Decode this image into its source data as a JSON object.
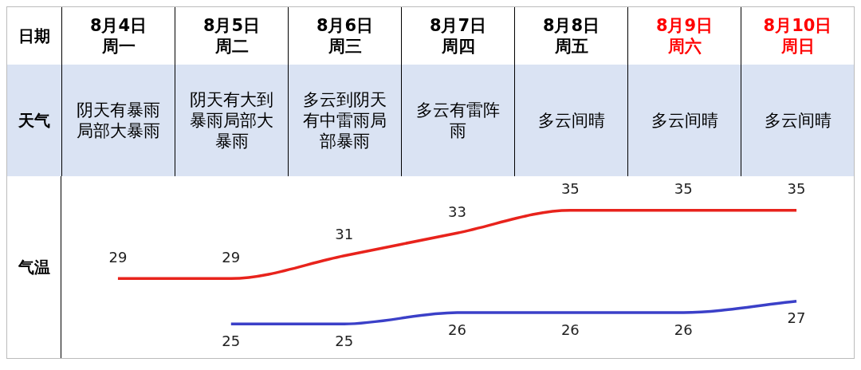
{
  "chart_data": {
    "type": "line",
    "categories": [
      "8月4日周一",
      "8月5日周二",
      "8月6日周三",
      "8月7日周四",
      "8月8日周五",
      "8月9日周六",
      "8月10日周日"
    ],
    "series": [
      {
        "color": "#e8231c",
        "values": [
          29,
          29,
          31,
          33,
          35,
          35,
          35
        ]
      },
      {
        "color": "#3b40c8",
        "values": [
          null,
          25,
          25,
          26,
          26,
          26,
          27
        ]
      }
    ],
    "annotations": [
      "日期",
      "天气",
      "气温",
      "阴天有暴雨局部大暴雨",
      "阴天有大到暴雨局部大暴雨",
      "多云到阴天有中雷雨局部暴雨",
      "多云有雷阵雨",
      "多云间晴",
      "多云间晴",
      "多云间晴"
    ],
    "data_labels": true,
    "marker": "none",
    "legend": false,
    "grid": false
  }
}
